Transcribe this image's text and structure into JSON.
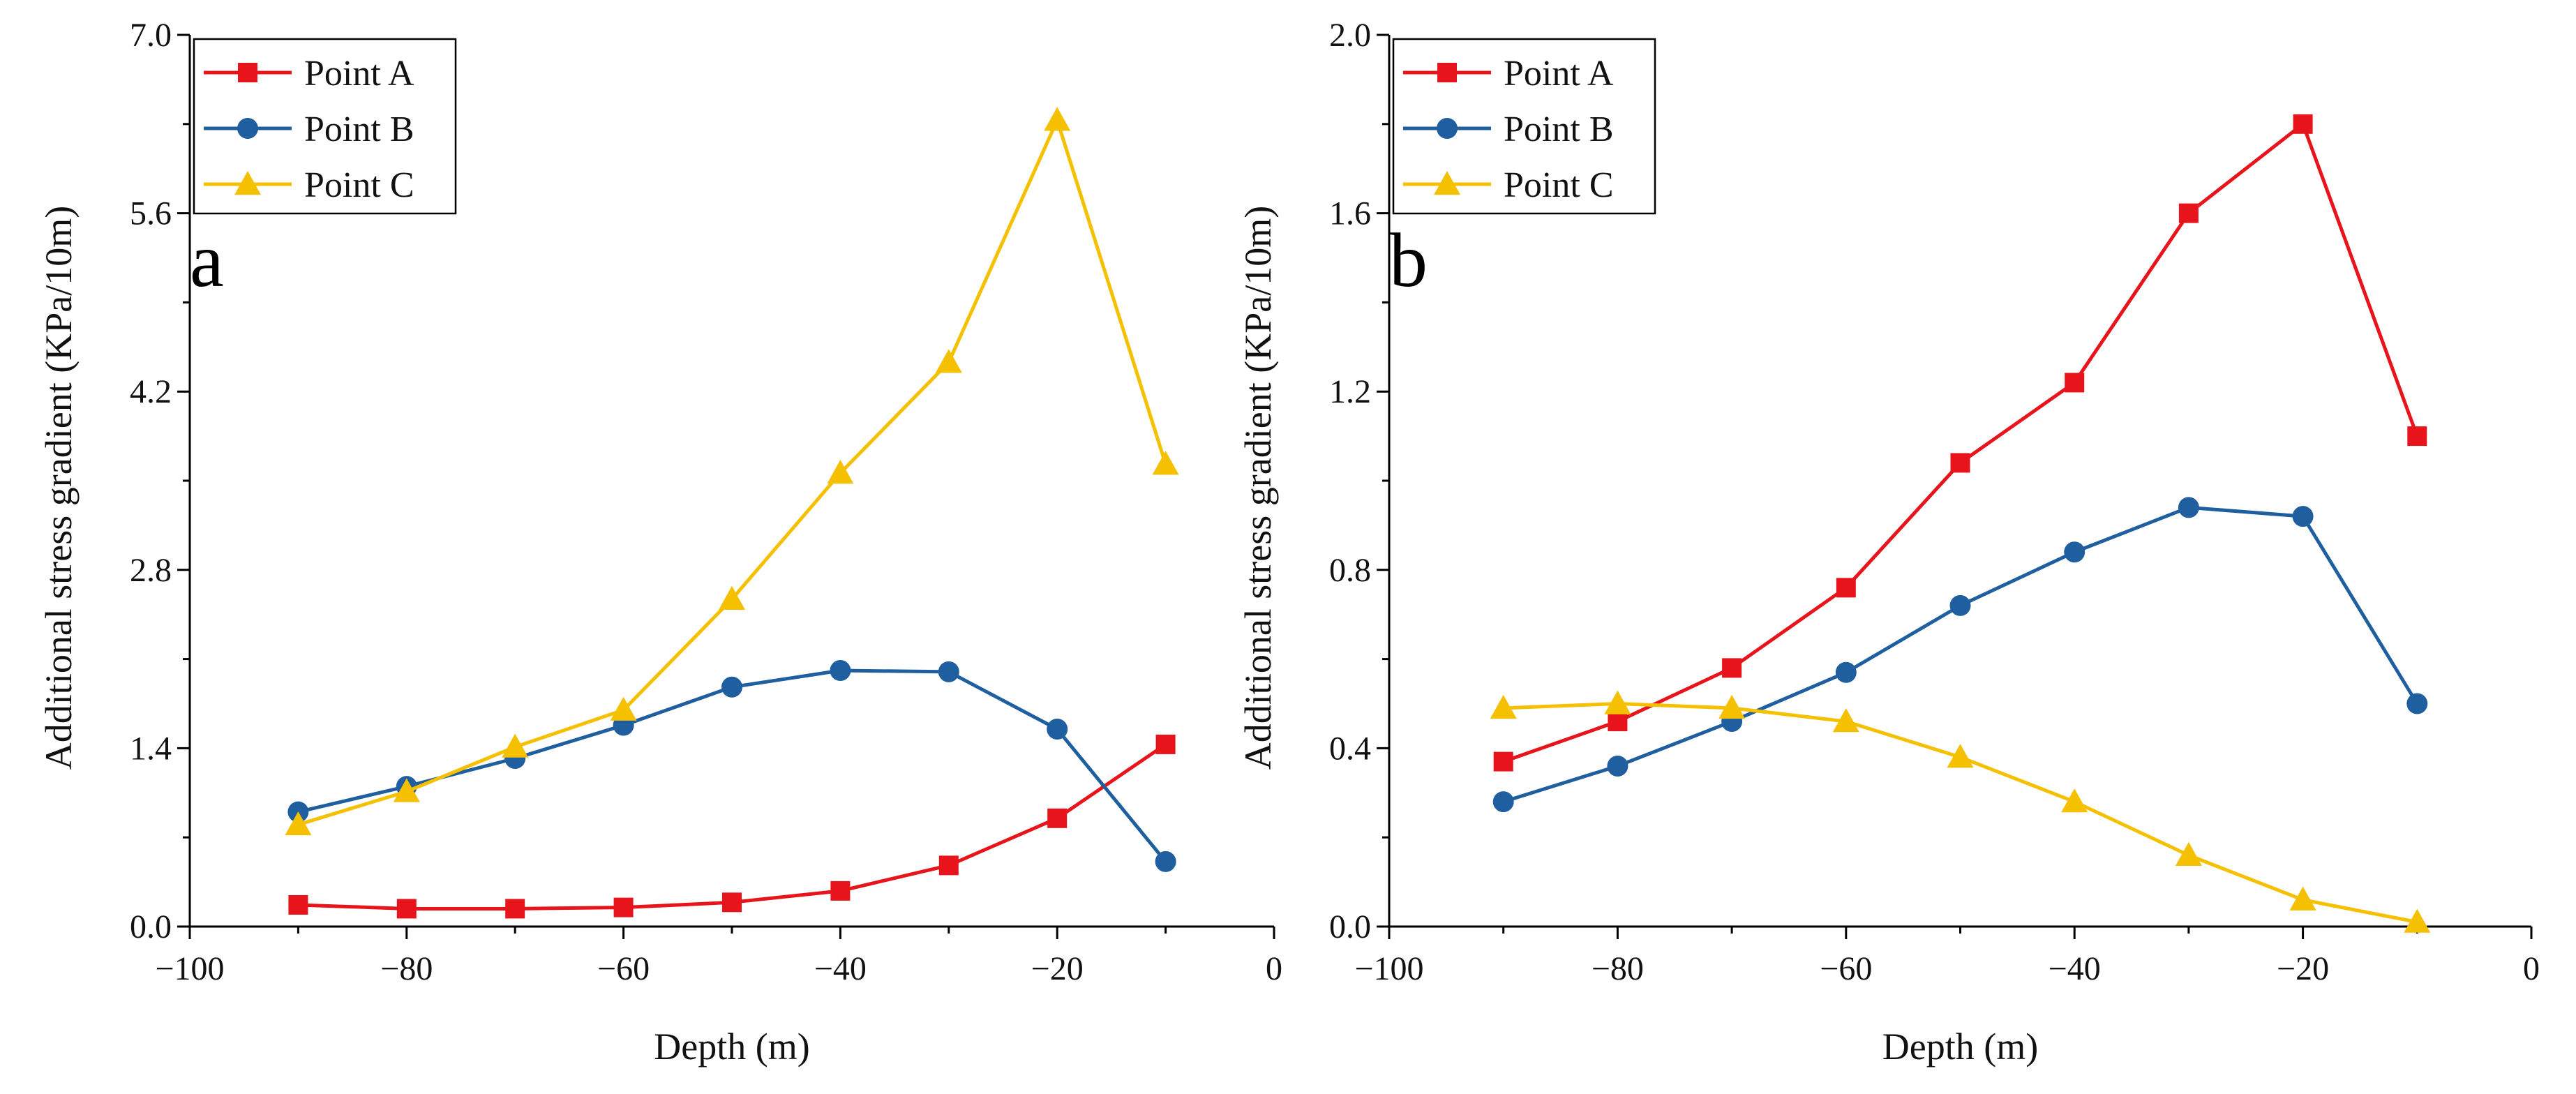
{
  "chart_data": [
    {
      "type": "line",
      "panel_label": "a",
      "xlabel": "Depth (m)",
      "ylabel": "Additional stress gradient (KPa/10m)",
      "xlim": [
        -100,
        0
      ],
      "ylim": [
        0,
        7
      ],
      "xticks": [
        -100,
        -80,
        -60,
        -40,
        -20,
        0
      ],
      "xtick_labels": [
        "−100",
        "−80",
        "−60",
        "−40",
        "−20",
        "0"
      ],
      "yticks": [
        0,
        1.4,
        2.8,
        4.2,
        5.6,
        7
      ],
      "ytick_labels": [
        "0.0",
        "1.4",
        "2.8",
        "4.2",
        "5.6",
        "7.0"
      ],
      "legend_position": "top-left",
      "x": [
        -90,
        -80,
        -70,
        -60,
        -50,
        -40,
        -30,
        -20,
        -10
      ],
      "series": [
        {
          "name": "Point A",
          "color": "#e8141c",
          "marker": "square",
          "values": [
            0.17,
            0.14,
            0.14,
            0.15,
            0.19,
            0.28,
            0.48,
            0.85,
            1.43
          ]
        },
        {
          "name": "Point B",
          "color": "#1f5fa0",
          "marker": "circle",
          "values": [
            0.9,
            1.1,
            1.32,
            1.58,
            1.88,
            2.01,
            2.0,
            1.55,
            0.51
          ]
        },
        {
          "name": "Point C",
          "color": "#f5c000",
          "marker": "triangle",
          "values": [
            0.8,
            1.06,
            1.41,
            1.7,
            2.57,
            3.56,
            4.43,
            6.33,
            3.63
          ]
        }
      ]
    },
    {
      "type": "line",
      "panel_label": "b",
      "xlabel": "Depth (m)",
      "ylabel": "Additional stress gradient (KPa/10m)",
      "xlim": [
        -100,
        0
      ],
      "ylim": [
        0,
        2
      ],
      "xticks": [
        -100,
        -80,
        -60,
        -40,
        -20,
        0
      ],
      "xtick_labels": [
        "−100",
        "−80",
        "−60",
        "−40",
        "−20",
        "0"
      ],
      "yticks": [
        0,
        0.4,
        0.8,
        1.2,
        1.6,
        2.0
      ],
      "ytick_labels": [
        "0.0",
        "0.4",
        "0.8",
        "1.2",
        "1.6",
        "2.0"
      ],
      "legend_position": "top-left",
      "x": [
        -90,
        -80,
        -70,
        -60,
        -50,
        -40,
        -30,
        -20,
        -10
      ],
      "series": [
        {
          "name": "Point A",
          "color": "#e8141c",
          "marker": "square",
          "values": [
            0.37,
            0.46,
            0.58,
            0.76,
            1.04,
            1.22,
            1.6,
            1.8,
            1.1
          ]
        },
        {
          "name": "Point B",
          "color": "#1f5fa0",
          "marker": "circle",
          "values": [
            0.28,
            0.36,
            0.46,
            0.57,
            0.72,
            0.84,
            0.94,
            0.92,
            0.5
          ]
        },
        {
          "name": "Point C",
          "color": "#f5c000",
          "marker": "triangle",
          "values": [
            0.49,
            0.5,
            0.49,
            0.46,
            0.38,
            0.28,
            0.16,
            0.06,
            0.01
          ]
        }
      ]
    }
  ]
}
